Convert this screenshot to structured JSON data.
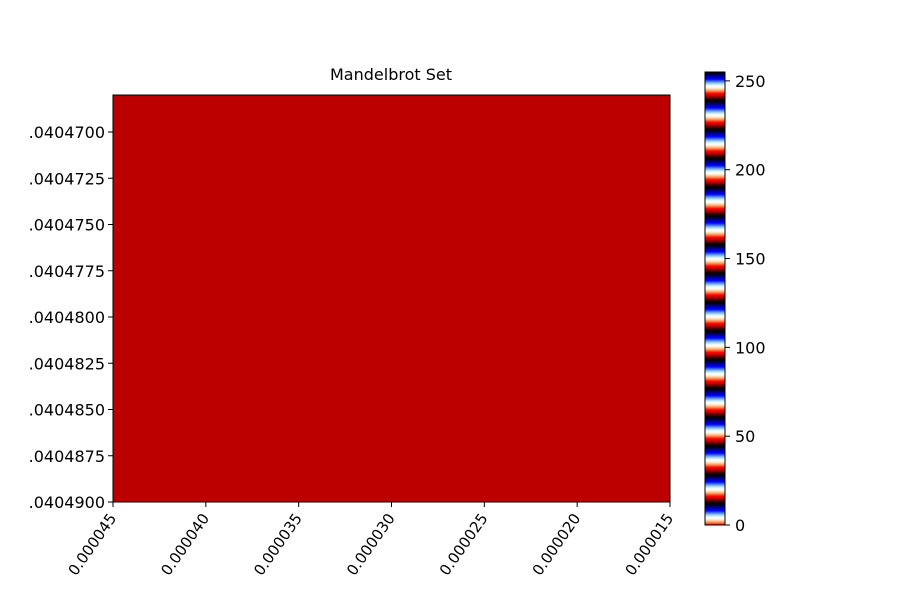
{
  "chart_data": {
    "type": "heatmap",
    "title": "Mandelbrot Set",
    "xlabel": "",
    "ylabel": "",
    "xlim": [
      -1.768000045,
      -1.768000015
    ],
    "ylim": [
      -0.040468,
      -0.04049
    ],
    "x_ticks": [
      "0.000045",
      "0.000040",
      "0.000035",
      "0.000030",
      "0.000025",
      "0.000020",
      "0.000015"
    ],
    "x_tick_values": [
      -1.768000045,
      -1.76800004,
      -1.768000035,
      -1.76800003,
      -1.768000025,
      -1.76800002,
      -1.768000015
    ],
    "y_ticks": [
      ".0404900",
      ".0404875",
      ".0404850",
      ".0404825",
      ".0404800",
      ".0404775",
      ".0404750",
      ".0404725",
      ".0404700"
    ],
    "y_tick_values": [
      -0.04049,
      -0.0404875,
      -0.040485,
      -0.0404825,
      -0.04048,
      -0.0404775,
      -0.040475,
      -0.0404725,
      -0.04047
    ],
    "max_iter": 256,
    "colormap": "flag",
    "colorbar": {
      "range": [
        0,
        255
      ],
      "ticks": [
        "0",
        "50",
        "100",
        "150",
        "200",
        "250"
      ],
      "tick_values": [
        0,
        50,
        100,
        150,
        200,
        250
      ]
    },
    "grid": false
  },
  "colors": {
    "inside": "#0000c8",
    "axis": "#000000",
    "background": "#ffffff"
  }
}
